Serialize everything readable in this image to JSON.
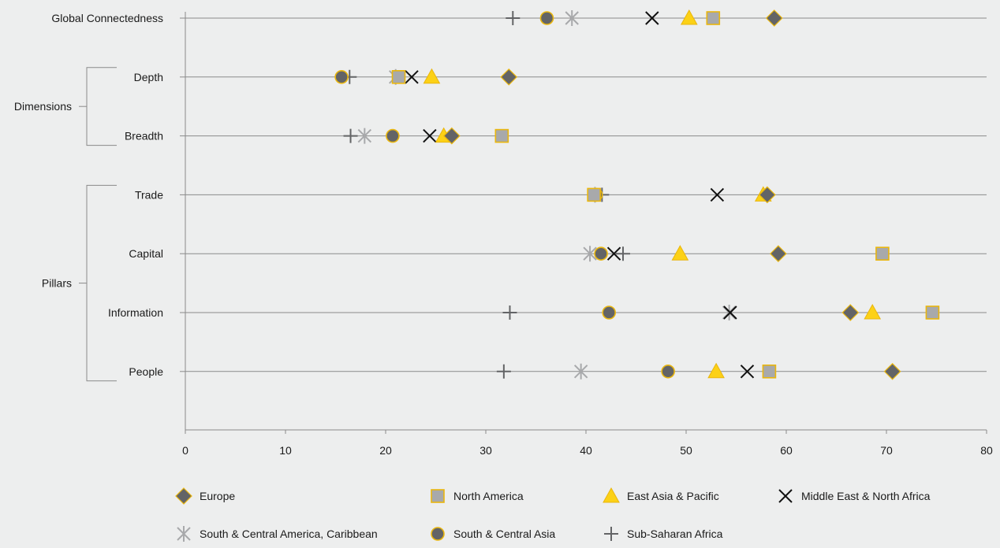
{
  "chart_data": {
    "type": "scatter",
    "title": "",
    "xlabel": "",
    "ylabel": "",
    "xlim": [
      0,
      80
    ],
    "x_ticks": [
      0,
      10,
      20,
      30,
      40,
      50,
      60,
      70,
      80
    ],
    "grid": "horizontal lines at each category",
    "legend_position": "bottom",
    "categories": [
      "Global Connectedness",
      "Depth",
      "Breadth",
      "Trade",
      "Capital",
      "Information",
      "People"
    ],
    "groups": [
      {
        "label": "Dimensions",
        "members": [
          "Depth",
          "Breadth"
        ]
      },
      {
        "label": "Pillars",
        "members": [
          "Trade",
          "Capital",
          "Information",
          "People"
        ]
      }
    ],
    "series": [
      {
        "name": "Europe",
        "marker": "diamond",
        "values": [
          58.8,
          32.3,
          26.6,
          58.1,
          59.2,
          66.4,
          70.6
        ]
      },
      {
        "name": "North America",
        "marker": "square",
        "values": [
          52.7,
          21.3,
          31.6,
          40.8,
          69.6,
          74.6,
          58.3
        ]
      },
      {
        "name": "East Asia & Pacific",
        "marker": "triangle",
        "values": [
          50.3,
          24.6,
          25.8,
          57.7,
          49.4,
          68.6,
          53.0
        ]
      },
      {
        "name": "Middle East & North Africa",
        "marker": "x",
        "values": [
          46.6,
          22.6,
          24.4,
          53.1,
          42.8,
          54.4,
          56.1
        ]
      },
      {
        "name": "South & Central America, Caribbean",
        "marker": "asterisk",
        "values": [
          38.6,
          21.0,
          17.9,
          40.9,
          40.4,
          54.3,
          39.5
        ]
      },
      {
        "name": "South & Central Asia",
        "marker": "circle",
        "values": [
          36.1,
          15.6,
          20.7,
          41.0,
          41.5,
          42.3,
          48.2
        ]
      },
      {
        "name": "Sub-Saharan Africa",
        "marker": "plus",
        "values": [
          32.7,
          16.4,
          16.5,
          41.6,
          43.7,
          32.4,
          31.8
        ]
      }
    ]
  },
  "colors": {
    "background": "#edeeee",
    "axis": "#8a8a8a",
    "gridline": "#8a8a8a",
    "dark_gray": "#636466",
    "light_gray": "#a8a9ab",
    "yellow": "#fcd116",
    "gold_edge": "#e9b60e",
    "black": "#111111"
  }
}
